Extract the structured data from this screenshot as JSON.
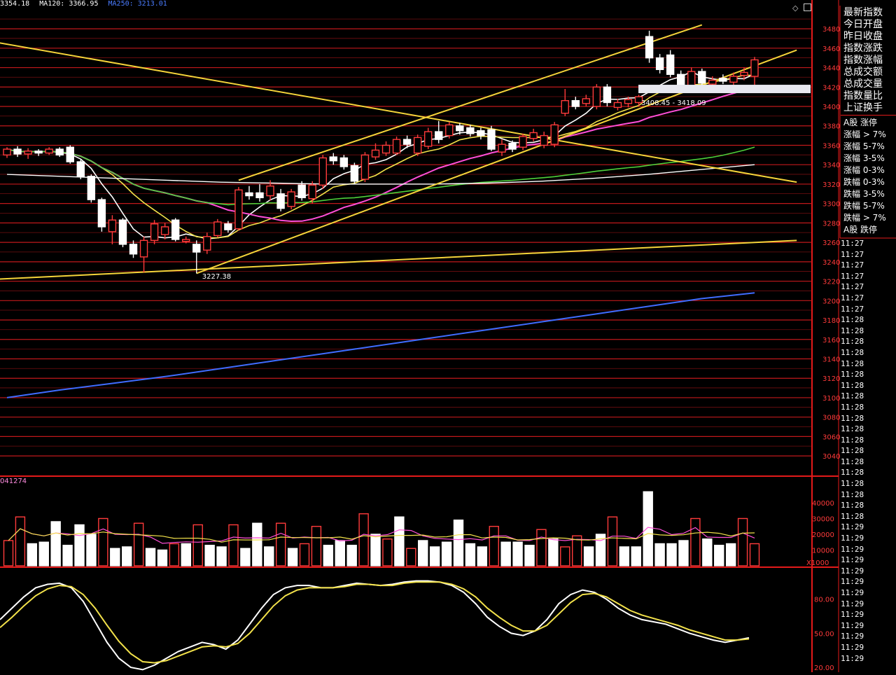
{
  "indicators": [
    {
      "label": "3354.18",
      "color": "#ffffff"
    },
    {
      "label": "MA120: 3366.95",
      "color": "#ffffff"
    },
    {
      "label": "MA250: 3213.01",
      "color": "#4a7cff"
    }
  ],
  "volume_caption": "041274",
  "volume_unit": "X1000",
  "side_panel": {
    "quote_labels": [
      "最新指数",
      "今日开盘",
      "昨日收盘",
      "指数涨跌",
      "指数涨幅",
      "总成交额",
      "总成交量",
      "指数量比",
      "上证换手"
    ],
    "breadth_labels": [
      "A股 涨停",
      "涨幅 > 7%",
      "涨幅 5-7%",
      "涨幅 3-5%",
      "涨幅 0-3%",
      "跌幅 0-3%",
      "跌幅 3-5%",
      "跌幅 5-7%",
      "跌幅 > 7%",
      "A股 跌停"
    ],
    "times": [
      "11:27",
      "11:27",
      "11:27",
      "11:27",
      "11:27",
      "11:27",
      "11:27",
      "11:28",
      "11:28",
      "11:28",
      "11:28",
      "11:28",
      "11:28",
      "11:28",
      "11:28",
      "11:28",
      "11:28",
      "11:28",
      "11:28",
      "11:28",
      "11:28",
      "11:28",
      "11:28",
      "11:28",
      "11:28",
      "11:28",
      "11:29",
      "11:29",
      "11:29",
      "11:29",
      "11:29",
      "11:29",
      "11:29",
      "11:29",
      "11:29",
      "11:29",
      "11:29",
      "11:29",
      "11:29"
    ]
  },
  "colors": {
    "up": "#ff3b3b",
    "down": "#ffffff",
    "grid": "#c0181b",
    "frame": "#e31a1a",
    "ma_white": "#ffffff",
    "ma_yellow": "#f2e14a",
    "ma_magenta": "#ff4fd8",
    "ma_green": "#4fd03a",
    "ma_blue": "#3f6cff",
    "trendline": "#f5d43a",
    "kdj_k": "#ffffff",
    "kdj_d": "#f2e14a"
  },
  "chart_data": [
    {
      "type": "candlestick",
      "y_ticks": [
        3480,
        3460,
        3440,
        3420,
        3400,
        3380,
        3360,
        3340,
        3320,
        3300,
        3280,
        3260,
        3240,
        3220,
        3200,
        3180,
        3160,
        3140,
        3120,
        3100,
        3080,
        3060,
        3040
      ],
      "ylim": [
        3030,
        3488
      ],
      "annotations": [
        "3227.38",
        "3408.45 - 3418.09"
      ],
      "candles": [
        {
          "o": 3350,
          "c": 3356,
          "h": 3358,
          "l": 3347
        },
        {
          "o": 3356,
          "c": 3351,
          "h": 3359,
          "l": 3348
        },
        {
          "o": 3351,
          "c": 3354,
          "h": 3357,
          "l": 3346
        },
        {
          "o": 3354,
          "c": 3352,
          "h": 3356,
          "l": 3349
        },
        {
          "o": 3352,
          "c": 3356,
          "h": 3358,
          "l": 3350
        },
        {
          "o": 3356,
          "c": 3350,
          "h": 3358,
          "l": 3348
        },
        {
          "o": 3358,
          "c": 3343,
          "h": 3360,
          "l": 3341
        },
        {
          "o": 3343,
          "c": 3328,
          "h": 3345,
          "l": 3325
        },
        {
          "o": 3328,
          "c": 3304,
          "h": 3330,
          "l": 3301
        },
        {
          "o": 3304,
          "c": 3276,
          "h": 3306,
          "l": 3271
        },
        {
          "o": 3271,
          "c": 3283,
          "h": 3288,
          "l": 3258
        },
        {
          "o": 3283,
          "c": 3258,
          "h": 3285,
          "l": 3255
        },
        {
          "o": 3258,
          "c": 3248,
          "h": 3262,
          "l": 3244
        },
        {
          "o": 3245,
          "c": 3262,
          "h": 3266,
          "l": 3229
        },
        {
          "o": 3262,
          "c": 3279,
          "h": 3283,
          "l": 3258
        },
        {
          "o": 3268,
          "c": 3276,
          "h": 3280,
          "l": 3263
        },
        {
          "o": 3283,
          "c": 3263,
          "h": 3285,
          "l": 3261
        },
        {
          "o": 3261,
          "c": 3263,
          "h": 3266,
          "l": 3259
        },
        {
          "o": 3258,
          "c": 3250,
          "h": 3262,
          "l": 3228
        },
        {
          "o": 3252,
          "c": 3266,
          "h": 3270,
          "l": 3248
        },
        {
          "o": 3267,
          "c": 3281,
          "h": 3284,
          "l": 3265
        },
        {
          "o": 3279,
          "c": 3273,
          "h": 3282,
          "l": 3270
        },
        {
          "o": 3274,
          "c": 3314,
          "h": 3317,
          "l": 3272
        },
        {
          "o": 3311,
          "c": 3308,
          "h": 3318,
          "l": 3304
        },
        {
          "o": 3311,
          "c": 3306,
          "h": 3320,
          "l": 3302
        },
        {
          "o": 3308,
          "c": 3318,
          "h": 3324,
          "l": 3303
        },
        {
          "o": 3310,
          "c": 3295,
          "h": 3315,
          "l": 3292
        },
        {
          "o": 3297,
          "c": 3312,
          "h": 3315,
          "l": 3294
        },
        {
          "o": 3319,
          "c": 3306,
          "h": 3323,
          "l": 3303
        },
        {
          "o": 3305,
          "c": 3319,
          "h": 3323,
          "l": 3300
        },
        {
          "o": 3319,
          "c": 3347,
          "h": 3350,
          "l": 3315
        },
        {
          "o": 3348,
          "c": 3344,
          "h": 3352,
          "l": 3340
        },
        {
          "o": 3347,
          "c": 3338,
          "h": 3350,
          "l": 3335
        },
        {
          "o": 3339,
          "c": 3323,
          "h": 3342,
          "l": 3320
        },
        {
          "o": 3325,
          "c": 3350,
          "h": 3353,
          "l": 3322
        },
        {
          "o": 3348,
          "c": 3355,
          "h": 3362,
          "l": 3345
        },
        {
          "o": 3352,
          "c": 3360,
          "h": 3364,
          "l": 3349
        },
        {
          "o": 3352,
          "c": 3366,
          "h": 3369,
          "l": 3350
        },
        {
          "o": 3366,
          "c": 3361,
          "h": 3370,
          "l": 3357
        },
        {
          "o": 3352,
          "c": 3368,
          "h": 3371,
          "l": 3349
        },
        {
          "o": 3359,
          "c": 3374,
          "h": 3378,
          "l": 3356
        },
        {
          "o": 3374,
          "c": 3366,
          "h": 3385,
          "l": 3362
        },
        {
          "o": 3370,
          "c": 3381,
          "h": 3384,
          "l": 3367
        },
        {
          "o": 3380,
          "c": 3375,
          "h": 3383,
          "l": 3371
        },
        {
          "o": 3378,
          "c": 3372,
          "h": 3381,
          "l": 3369
        },
        {
          "o": 3375,
          "c": 3370,
          "h": 3378,
          "l": 3366
        },
        {
          "o": 3376,
          "c": 3356,
          "h": 3380,
          "l": 3354
        },
        {
          "o": 3353,
          "c": 3361,
          "h": 3366,
          "l": 3349
        },
        {
          "o": 3362,
          "c": 3356,
          "h": 3365,
          "l": 3353
        },
        {
          "o": 3358,
          "c": 3369,
          "h": 3372,
          "l": 3355
        },
        {
          "o": 3367,
          "c": 3373,
          "h": 3377,
          "l": 3364
        },
        {
          "o": 3360,
          "c": 3370,
          "h": 3374,
          "l": 3357
        },
        {
          "o": 3361,
          "c": 3381,
          "h": 3384,
          "l": 3358
        },
        {
          "o": 3393,
          "c": 3406,
          "h": 3418,
          "l": 3390
        },
        {
          "o": 3406,
          "c": 3400,
          "h": 3410,
          "l": 3397
        },
        {
          "o": 3403,
          "c": 3408,
          "h": 3412,
          "l": 3400
        },
        {
          "o": 3400,
          "c": 3420,
          "h": 3423,
          "l": 3397
        },
        {
          "o": 3420,
          "c": 3404,
          "h": 3423,
          "l": 3400
        },
        {
          "o": 3399,
          "c": 3404,
          "h": 3408,
          "l": 3396
        },
        {
          "o": 3403,
          "c": 3407,
          "h": 3410,
          "l": 3399
        },
        {
          "o": 3404,
          "c": 3410,
          "h": 3412,
          "l": 3401
        },
        {
          "o": 3472,
          "c": 3450,
          "h": 3478,
          "l": 3445
        },
        {
          "o": 3450,
          "c": 3438,
          "h": 3454,
          "l": 3434
        },
        {
          "o": 3453,
          "c": 3433,
          "h": 3458,
          "l": 3430
        },
        {
          "o": 3433,
          "c": 3422,
          "h": 3437,
          "l": 3418
        },
        {
          "o": 3418,
          "c": 3436,
          "h": 3440,
          "l": 3415
        },
        {
          "o": 3436,
          "c": 3424,
          "h": 3439,
          "l": 3420
        },
        {
          "o": 3423,
          "c": 3427,
          "h": 3431,
          "l": 3419
        },
        {
          "o": 3429,
          "c": 3426,
          "h": 3433,
          "l": 3423
        },
        {
          "o": 3425,
          "c": 3431,
          "h": 3435,
          "l": 3421
        },
        {
          "o": 3432,
          "c": 3435,
          "h": 3440,
          "l": 3427
        },
        {
          "o": 3431,
          "c": 3448,
          "h": 3451,
          "l": 3422
        }
      ]
    },
    {
      "type": "bar",
      "series_label": "volume",
      "unit": "X1000",
      "y_ticks": [
        40000,
        30000,
        20000,
        10000
      ],
      "ylim": [
        0,
        48000
      ],
      "values": [
        {
          "v": 16000,
          "up": true
        },
        {
          "v": 31000,
          "up": true
        },
        {
          "v": 14000,
          "up": false
        },
        {
          "v": 15000,
          "up": false
        },
        {
          "v": 28000,
          "up": false
        },
        {
          "v": 13000,
          "up": false
        },
        {
          "v": 26000,
          "up": false
        },
        {
          "v": 20000,
          "up": false
        },
        {
          "v": 30000,
          "up": true
        },
        {
          "v": 11000,
          "up": false
        },
        {
          "v": 12000,
          "up": false
        },
        {
          "v": 27000,
          "up": true
        },
        {
          "v": 11000,
          "up": false
        },
        {
          "v": 10000,
          "up": false
        },
        {
          "v": 14000,
          "up": true
        },
        {
          "v": 14000,
          "up": false
        },
        {
          "v": 26000,
          "up": true
        },
        {
          "v": 13000,
          "up": false
        },
        {
          "v": 12000,
          "up": false
        },
        {
          "v": 26000,
          "up": true
        },
        {
          "v": 11000,
          "up": false
        },
        {
          "v": 27000,
          "up": false
        },
        {
          "v": 12000,
          "up": false
        },
        {
          "v": 27000,
          "up": true
        },
        {
          "v": 11000,
          "up": false
        },
        {
          "v": 14000,
          "up": true
        },
        {
          "v": 25000,
          "up": true
        },
        {
          "v": 13000,
          "up": false
        },
        {
          "v": 16000,
          "up": false
        },
        {
          "v": 13000,
          "up": false
        },
        {
          "v": 33000,
          "up": true
        },
        {
          "v": 20000,
          "up": false
        },
        {
          "v": 17000,
          "up": true
        },
        {
          "v": 31000,
          "up": false
        },
        {
          "v": 11000,
          "up": true
        },
        {
          "v": 16000,
          "up": false
        },
        {
          "v": 12000,
          "up": false
        },
        {
          "v": 15000,
          "up": false
        },
        {
          "v": 29000,
          "up": false
        },
        {
          "v": 14000,
          "up": false
        },
        {
          "v": 12000,
          "up": false
        },
        {
          "v": 25000,
          "up": true
        },
        {
          "v": 15000,
          "up": false
        },
        {
          "v": 15000,
          "up": false
        },
        {
          "v": 13000,
          "up": false
        },
        {
          "v": 23000,
          "up": true
        },
        {
          "v": 17000,
          "up": false
        },
        {
          "v": 12000,
          "up": true
        },
        {
          "v": 19000,
          "up": true
        },
        {
          "v": 12000,
          "up": false
        },
        {
          "v": 20000,
          "up": false
        },
        {
          "v": 31000,
          "up": true
        },
        {
          "v": 12000,
          "up": false
        },
        {
          "v": 12000,
          "up": false
        },
        {
          "v": 47000,
          "up": false
        },
        {
          "v": 14000,
          "up": false
        },
        {
          "v": 14000,
          "up": false
        },
        {
          "v": 16000,
          "up": false
        },
        {
          "v": 30000,
          "up": true
        },
        {
          "v": 17000,
          "up": false
        },
        {
          "v": 13000,
          "up": false
        },
        {
          "v": 14000,
          "up": false
        },
        {
          "v": 30000,
          "up": true
        },
        {
          "v": 14000,
          "up": true
        }
      ]
    },
    {
      "type": "line",
      "series_label": "KDJ",
      "y_ticks": [
        80.0,
        50.0,
        20.0
      ],
      "ylim": [
        17,
        97
      ],
      "k": [
        62,
        72,
        82,
        90,
        93,
        94,
        90,
        78,
        60,
        42,
        28,
        20,
        18,
        22,
        28,
        34,
        38,
        42,
        40,
        36,
        44,
        58,
        72,
        84,
        90,
        92,
        92,
        90,
        90,
        92,
        94,
        93,
        92,
        93,
        95,
        96,
        96,
        95,
        92,
        86,
        76,
        64,
        56,
        50,
        48,
        52,
        62,
        76,
        84,
        88,
        86,
        80,
        72,
        66,
        62,
        60,
        58,
        54,
        50,
        47,
        44,
        42,
        44,
        46
      ],
      "d": [
        55,
        64,
        74,
        83,
        89,
        92,
        91,
        84,
        72,
        57,
        43,
        32,
        25,
        24,
        26,
        30,
        34,
        38,
        39,
        38,
        41,
        50,
        62,
        74,
        83,
        88,
        90,
        90,
        90,
        91,
        93,
        93,
        92,
        92,
        94,
        95,
        95,
        95,
        93,
        89,
        82,
        72,
        64,
        57,
        52,
        52,
        57,
        67,
        77,
        84,
        85,
        82,
        76,
        70,
        66,
        63,
        60,
        57,
        53,
        50,
        47,
        44,
        44,
        45
      ]
    }
  ]
}
